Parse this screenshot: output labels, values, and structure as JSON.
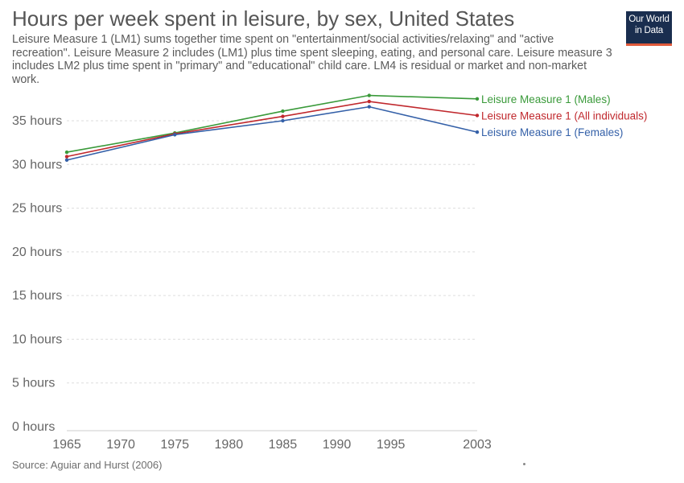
{
  "header": {
    "title": "Hours per week spent in leisure, by sex, United States",
    "subtitle": "Leisure Measure 1 (LM1) sums together time spent on \"entertainment/social activities/relaxing\" and \"active recreation\". Leisure Measure 2 includes (LM1) plus time spent sleeping, eating, and personal care. Leisure measure 3 includes LM2 plus time spent in \"primary\" and \"educational\" child care. LM4 is residual or market and non-market work.",
    "logo_line1": "Our World",
    "logo_line2": "in Data"
  },
  "footer": {
    "source": "Source: Aguiar and Hurst (2006)"
  },
  "chart_data": {
    "type": "line",
    "title": "Hours per week spent in leisure, by sex, United States",
    "x_ticks": [
      1965,
      1970,
      1975,
      1980,
      1985,
      1990,
      1995,
      2003
    ],
    "y_ticks": [
      0,
      5,
      10,
      15,
      20,
      25,
      30,
      35
    ],
    "y_tick_labels": [
      "0 hours",
      "5 hours",
      "10 hours",
      "15 hours",
      "20 hours",
      "25 hours",
      "30 hours",
      "35 hours"
    ],
    "xlim": [
      1965,
      2003
    ],
    "ylim": [
      0,
      35
    ],
    "grid": "horizontal dashed",
    "legend": "line-end labels",
    "series": [
      {
        "name": "Leisure Measure 1 (Males)",
        "color": "#3a9a3a",
        "x": [
          1965,
          1975,
          1985,
          1993,
          2003
        ],
        "values": [
          31.4,
          33.6,
          36.1,
          37.9,
          37.5
        ]
      },
      {
        "name": "Leisure Measure 1 (All individuals)",
        "color": "#c0282d",
        "x": [
          1965,
          1975,
          1985,
          1993,
          2003
        ],
        "values": [
          30.9,
          33.5,
          35.5,
          37.2,
          35.6
        ]
      },
      {
        "name": "Leisure Measure 1 (Females)",
        "color": "#3460a8",
        "x": [
          1965,
          1975,
          1985,
          1993,
          2003
        ],
        "values": [
          30.5,
          33.4,
          35.0,
          36.6,
          33.7
        ]
      }
    ]
  }
}
